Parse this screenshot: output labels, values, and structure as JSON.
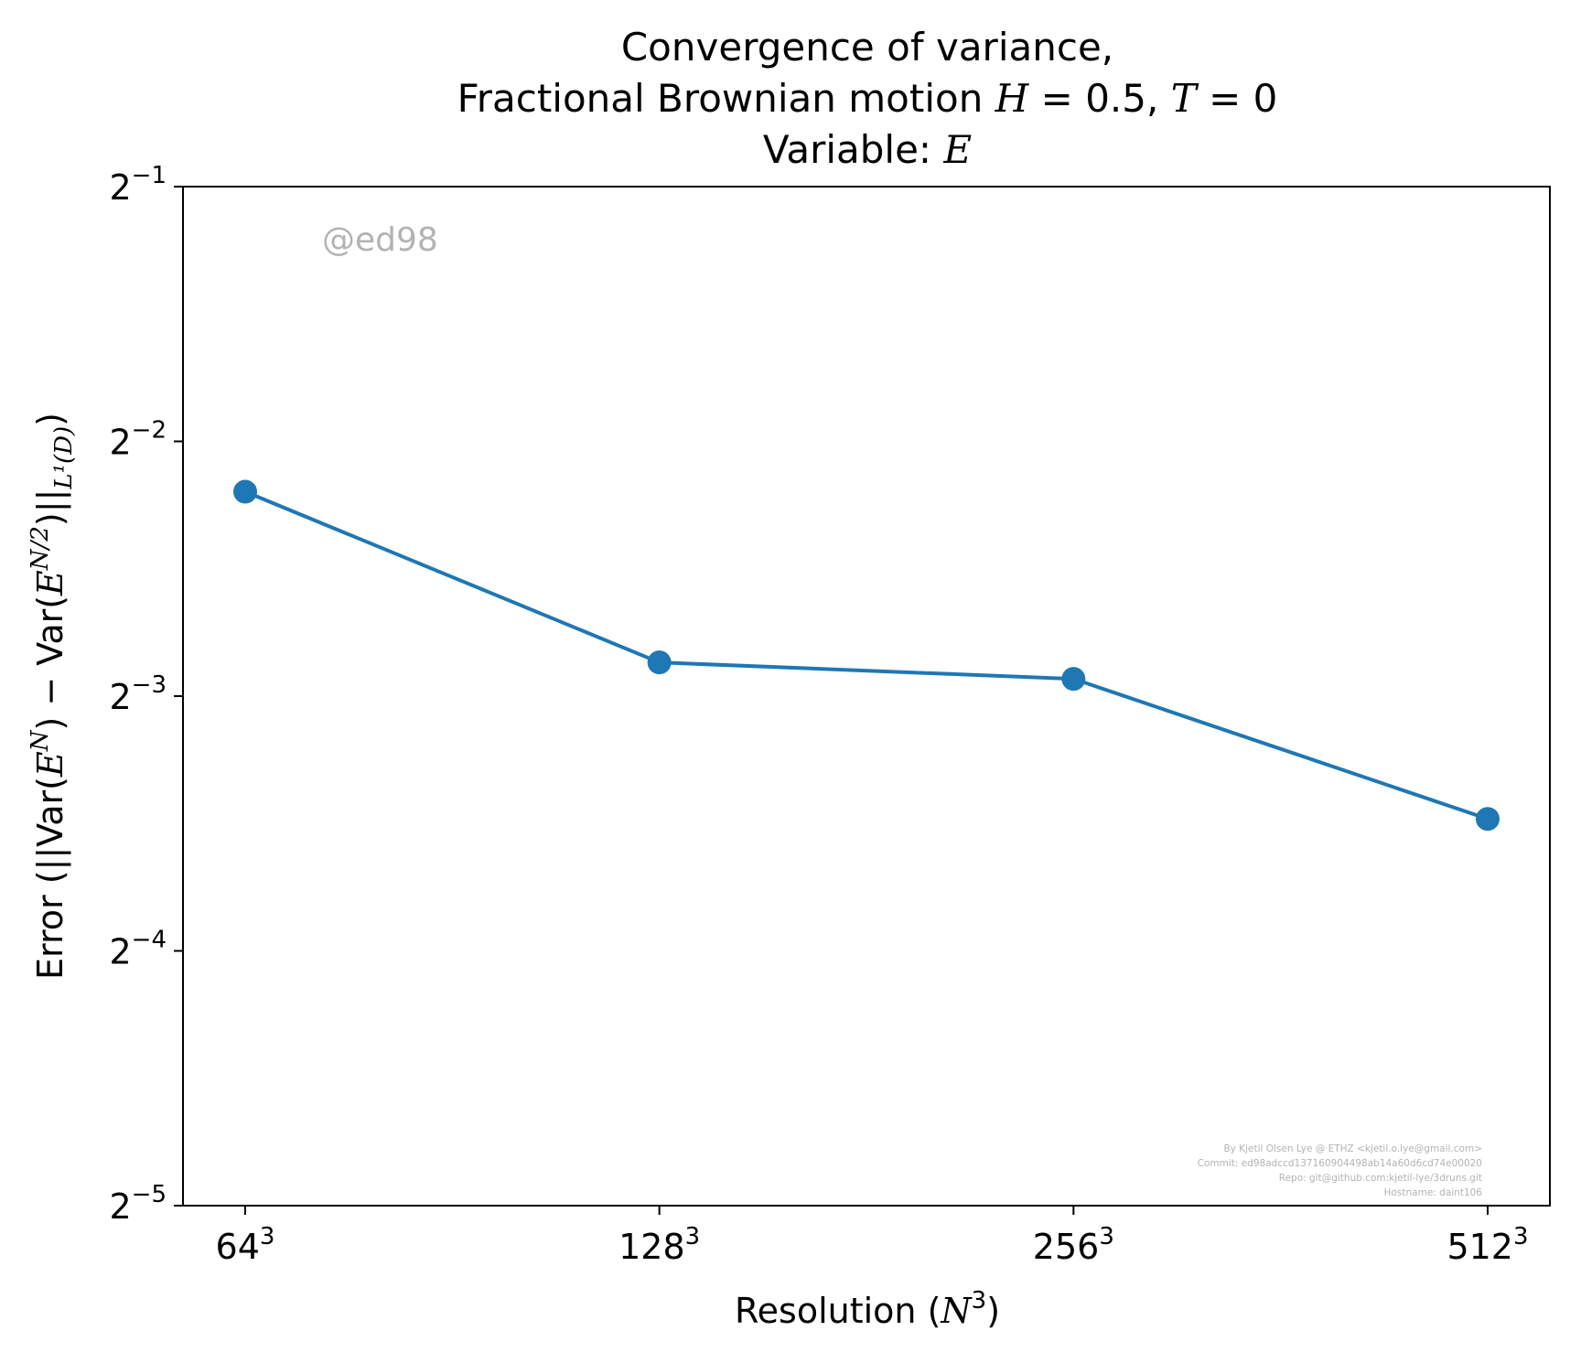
{
  "chart_data": {
    "type": "line",
    "title_lines": [
      "Convergence of variance,",
      "Fractional Brownian motion",
      "Variable: "
    ],
    "title_math": {
      "H": "H",
      "H_value": " = 0.5, ",
      "T": "T",
      "T_value": " = 0",
      "var": "E"
    },
    "xlabel": {
      "text": "Resolution (",
      "math": "N",
      "sup": "3",
      "close": ")"
    },
    "ylabel": {
      "p1": "Error (||Var(",
      "e1": "E",
      "s1": "N",
      "p2": ") − Var(",
      "e2": "E",
      "s2": "N/2",
      "p3": ")||",
      "sub": "L¹(D)",
      "p4": ")"
    },
    "x_categories": [
      "64",
      "128",
      "256",
      "512"
    ],
    "x_sup": "3",
    "y_scale": "log2",
    "ylim": [
      0.03125,
      0.5
    ],
    "y_ticks": [
      {
        "base": "2",
        "exp": "−1",
        "value": 0.5
      },
      {
        "base": "2",
        "exp": "−2",
        "value": 0.25
      },
      {
        "base": "2",
        "exp": "−3",
        "value": 0.125
      },
      {
        "base": "2",
        "exp": "−4",
        "value": 0.0625
      },
      {
        "base": "2",
        "exp": "−5",
        "value": 0.03125
      }
    ],
    "series": [
      {
        "values": [
          0.218,
          0.137,
          0.131,
          0.0895
        ],
        "color": "#1f77b4"
      }
    ],
    "grid": false,
    "legend": "none"
  },
  "watermark": "@ed98",
  "credits": [
    "By Kjetil Olsen Lye @ ETHZ <kjetil.o.lye@gmail.com>",
    "Commit: ed98adccd137160904498ab14a60d6cd74e00020",
    "Repo: git@github.com:kjetil-lye/3druns.git",
    "Hostname: daint106"
  ]
}
